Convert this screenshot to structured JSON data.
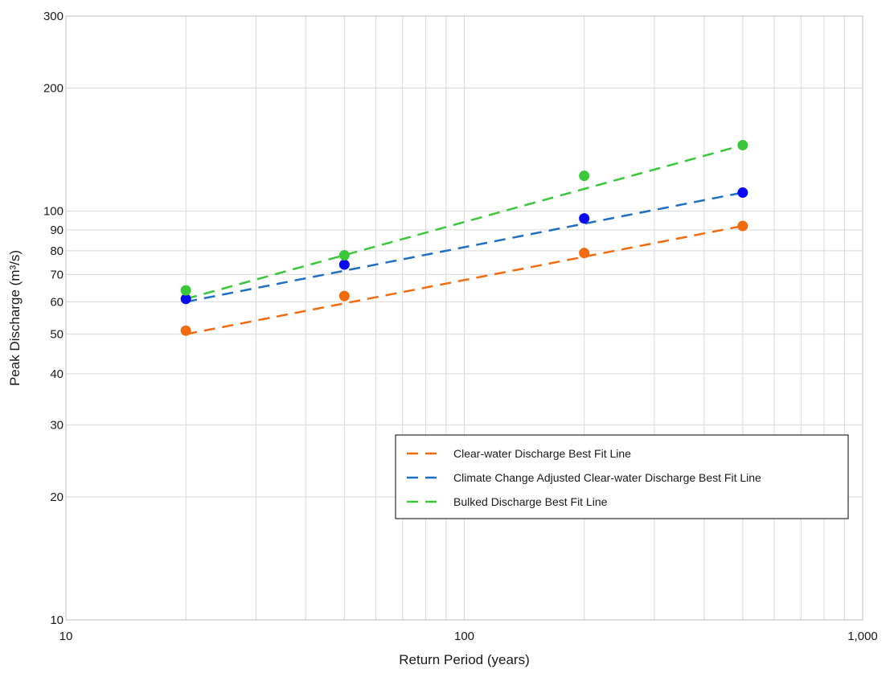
{
  "chart_data": {
    "type": "scatter",
    "xlabel": "Return Period (years)",
    "ylabel": "Peak Discharge (m³/s)",
    "xscale": "log",
    "yscale": "log",
    "xlim": [
      10,
      1000
    ],
    "ylim": [
      10,
      300
    ],
    "grid": true,
    "x_ticks": [
      {
        "value": 10,
        "label": "10"
      },
      {
        "value": 100,
        "label": "100"
      },
      {
        "value": 1000,
        "label": "1,000"
      }
    ],
    "y_ticks": [
      {
        "value": 10,
        "label": "10"
      },
      {
        "value": 20,
        "label": "20"
      },
      {
        "value": 30,
        "label": "30"
      },
      {
        "value": 40,
        "label": "40"
      },
      {
        "value": 50,
        "label": "50"
      },
      {
        "value": 60,
        "label": "60"
      },
      {
        "value": 70,
        "label": "70"
      },
      {
        "value": 80,
        "label": "80"
      },
      {
        "value": 90,
        "label": "90"
      },
      {
        "value": 100,
        "label": "100"
      },
      {
        "value": 200,
        "label": "200"
      },
      {
        "value": 300,
        "label": "300"
      }
    ],
    "legend_position": "bottom-right",
    "series": [
      {
        "name": "Clear-water Discharge Best Fit Line",
        "color": "#f26b0f",
        "point_color": "#f26b0f",
        "x": [
          20,
          50,
          200,
          500
        ],
        "y": [
          51,
          62,
          79,
          92
        ],
        "fit": {
          "x": [
            20,
            500
          ],
          "y": [
            50,
            92
          ]
        }
      },
      {
        "name": "Climate Change Adjusted Clear-water Discharge Best Fit Line",
        "color": "#1f6fc5",
        "point_color": "#0a0af0",
        "x": [
          20,
          50,
          200,
          500
        ],
        "y": [
          61,
          74,
          96,
          111
        ],
        "fit": {
          "x": [
            20,
            500
          ],
          "y": [
            60,
            111
          ]
        }
      },
      {
        "name": "Bulked Discharge Best Fit Line",
        "color": "#3ac83a",
        "point_color": "#3ac83a",
        "x": [
          20,
          50,
          200,
          500
        ],
        "y": [
          64,
          78,
          122,
          145
        ],
        "fit": {
          "x": [
            20,
            500
          ],
          "y": [
            61,
            145
          ]
        }
      }
    ]
  }
}
